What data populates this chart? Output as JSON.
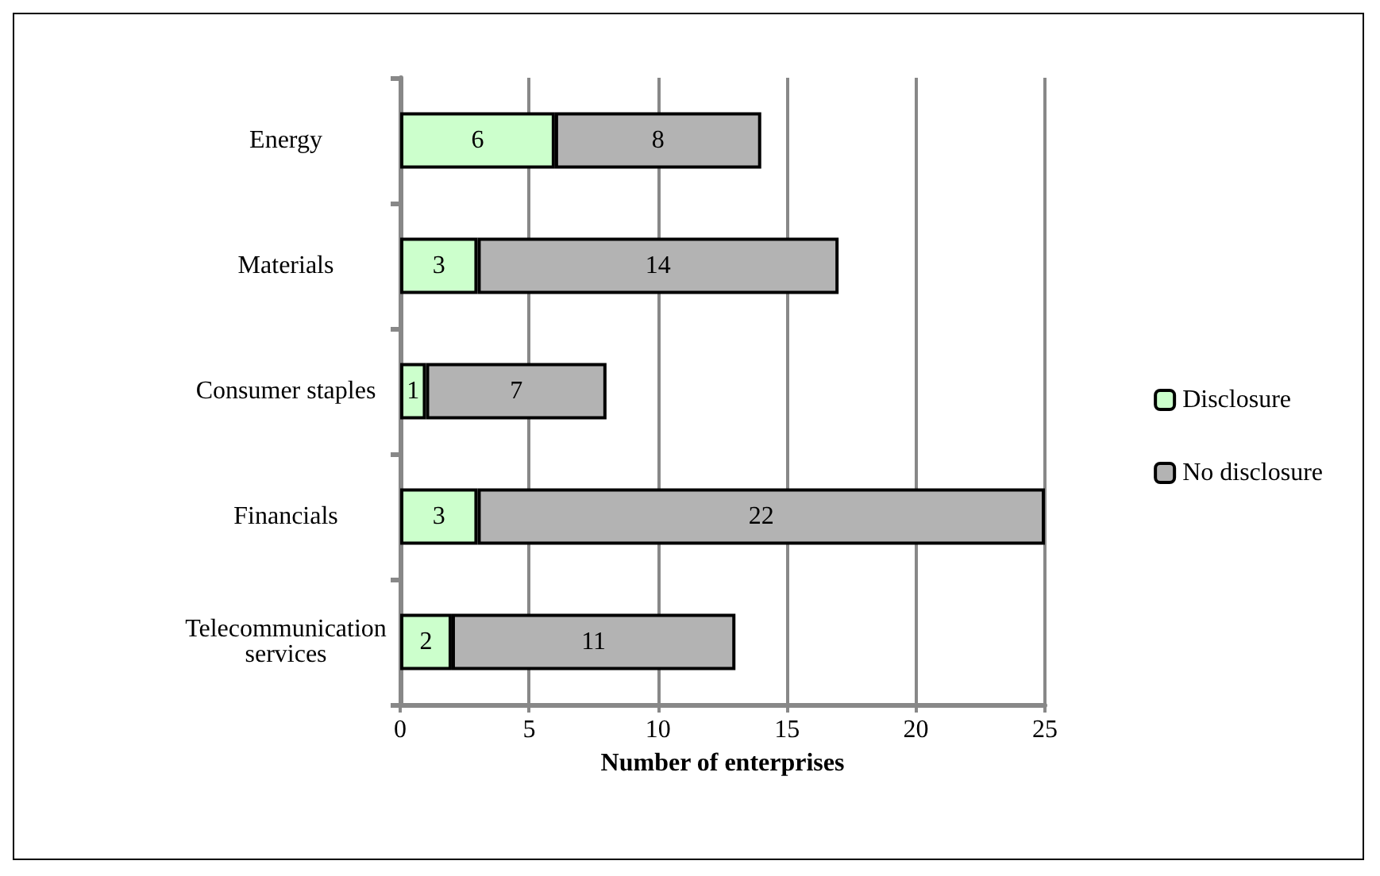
{
  "chart_data": {
    "type": "bar",
    "orientation": "horizontal",
    "stacked": true,
    "xlabel": "Number of enterprises",
    "categories": [
      "Energy",
      "Materials",
      "Consumer staples",
      "Financials",
      "Telecommunication\nservices"
    ],
    "series": [
      {
        "name": "Disclosure",
        "color": "#ccffcc",
        "values": [
          6,
          3,
          1,
          3,
          2
        ]
      },
      {
        "name": "No disclosure",
        "color": "#b3b3b3",
        "values": [
          8,
          14,
          7,
          22,
          11
        ]
      }
    ],
    "xlim": [
      0,
      25
    ],
    "xticks": [
      0,
      5,
      10,
      15,
      20,
      25
    ],
    "grid": "x",
    "legend": "right",
    "data_labels": true
  }
}
